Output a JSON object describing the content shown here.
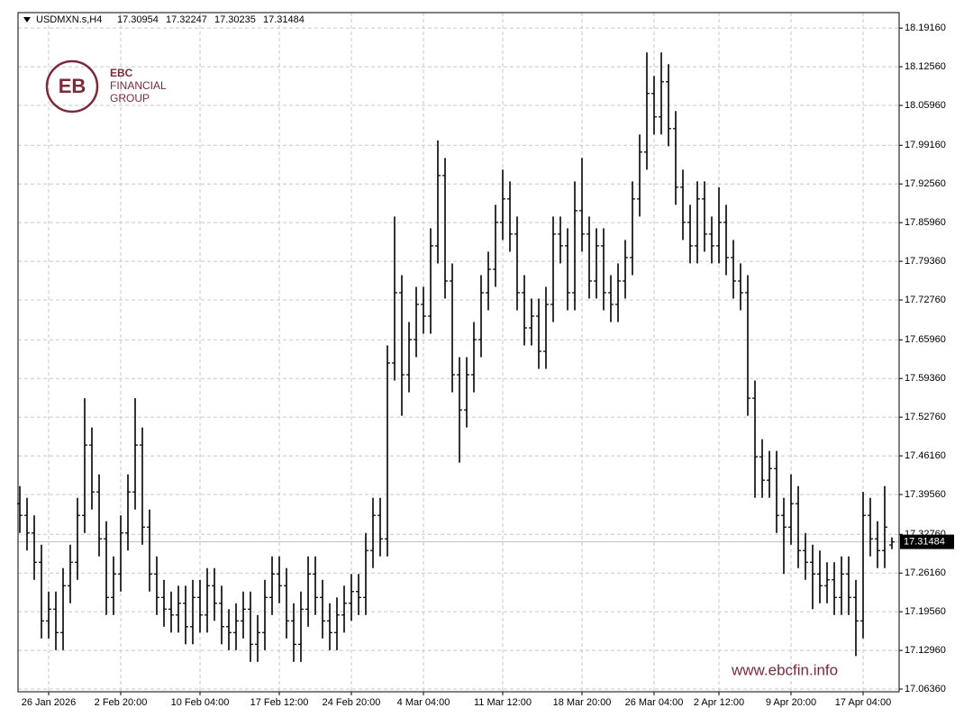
{
  "chart_data": {
    "type": "ohlc",
    "symbol": "USDMXN.s,H4",
    "color": "#000000",
    "grid": true,
    "logo": {
      "mark": "EBC",
      "line1": "FINANCIAL",
      "line2": "GROUP"
    },
    "watermark": "www.ebcfin.info",
    "ylim": [
      17.059,
      18.218
    ],
    "yticks": [
      {
        "value": 18.1916,
        "label": "18.19160"
      },
      {
        "value": 18.1256,
        "label": "18.12560"
      },
      {
        "value": 18.0596,
        "label": "18.05960"
      },
      {
        "value": 17.9916,
        "label": "17.99160"
      },
      {
        "value": 17.9256,
        "label": "17.92560"
      },
      {
        "value": 17.8596,
        "label": "17.85960"
      },
      {
        "value": 17.7936,
        "label": "17.79360"
      },
      {
        "value": 17.7276,
        "label": "17.72760"
      },
      {
        "value": 17.6596,
        "label": "17.65960"
      },
      {
        "value": 17.5936,
        "label": "17.59360"
      },
      {
        "value": 17.5276,
        "label": "17.52760"
      },
      {
        "value": 17.4616,
        "label": "17.46160"
      },
      {
        "value": 17.3956,
        "label": "17.39560"
      },
      {
        "value": 17.3276,
        "label": "17.32760"
      },
      {
        "value": 17.2616,
        "label": "17.26160"
      },
      {
        "value": 17.1956,
        "label": "17.19560"
      },
      {
        "value": 17.1296,
        "label": "17.12960"
      },
      {
        "value": 17.0636,
        "label": "17.06360"
      }
    ],
    "categories": [
      null,
      null,
      null,
      null,
      "26 Jan 2026",
      null,
      null,
      null,
      null,
      null,
      null,
      null,
      null,
      null,
      "2 Feb 20:00",
      null,
      null,
      null,
      null,
      null,
      null,
      null,
      null,
      null,
      null,
      "10 Feb 04:00",
      null,
      null,
      null,
      null,
      null,
      null,
      null,
      null,
      null,
      null,
      "17 Feb 12:00",
      null,
      null,
      null,
      null,
      null,
      null,
      null,
      null,
      null,
      "24 Feb 20:00",
      null,
      null,
      null,
      null,
      null,
      null,
      null,
      null,
      null,
      "4 Mar 04:00",
      null,
      null,
      null,
      null,
      null,
      null,
      null,
      null,
      null,
      null,
      "11 Mar 12:00",
      null,
      null,
      null,
      null,
      null,
      null,
      null,
      null,
      null,
      null,
      "18 Mar 20:00",
      null,
      null,
      null,
      null,
      null,
      null,
      null,
      null,
      null,
      "26 Mar 04:00",
      null,
      null,
      null,
      null,
      null,
      null,
      null,
      null,
      "2 Apr 12:00",
      null,
      null,
      null,
      null,
      null,
      null,
      null,
      null,
      null,
      "9 Apr 20:00",
      null,
      null,
      null,
      null,
      null,
      null,
      null,
      null,
      null,
      "17 Apr 04:00",
      null,
      null,
      null,
      null
    ],
    "open": [
      17.38,
      17.36,
      17.33,
      17.28,
      17.18,
      17.2,
      17.16,
      17.24,
      17.28,
      17.36,
      17.48,
      17.4,
      17.32,
      17.22,
      17.26,
      17.33,
      17.4,
      17.48,
      17.34,
      17.26,
      17.22,
      17.2,
      17.19,
      17.21,
      17.17,
      17.22,
      17.19,
      17.24,
      17.21,
      17.17,
      17.16,
      17.18,
      17.2,
      17.14,
      17.16,
      17.22,
      17.26,
      17.24,
      17.18,
      17.14,
      17.2,
      17.26,
      17.22,
      17.18,
      17.16,
      17.19,
      17.21,
      17.23,
      17.22,
      17.3,
      17.36,
      17.32,
      17.62,
      17.74,
      17.6,
      17.66,
      17.72,
      17.7,
      17.82,
      17.94,
      17.76,
      17.6,
      17.54,
      17.6,
      17.66,
      17.74,
      17.78,
      17.86,
      17.9,
      17.84,
      17.74,
      17.68,
      17.7,
      17.64,
      17.72,
      17.84,
      17.82,
      17.74,
      17.88,
      17.84,
      17.76,
      17.82,
      17.74,
      17.72,
      17.76,
      17.8,
      17.9,
      17.98,
      18.08,
      18.04,
      18.1,
      18.02,
      17.92,
      17.86,
      17.82,
      17.9,
      17.84,
      17.82,
      17.86,
      17.8,
      17.76,
      17.74,
      17.56,
      17.46,
      17.42,
      17.44,
      17.36,
      17.34,
      17.38,
      17.3,
      17.28,
      17.26,
      17.24,
      17.25,
      17.22,
      17.26,
      17.22,
      17.18,
      17.36,
      17.32,
      17.3,
      17.30954
    ],
    "high": [
      17.41,
      17.39,
      17.36,
      17.31,
      17.23,
      17.23,
      17.27,
      17.31,
      17.39,
      17.56,
      17.51,
      17.43,
      17.35,
      17.29,
      17.36,
      17.43,
      17.56,
      17.51,
      17.37,
      17.29,
      17.25,
      17.23,
      17.24,
      17.24,
      17.25,
      17.25,
      17.27,
      17.27,
      17.24,
      17.2,
      17.21,
      17.23,
      17.23,
      17.19,
      17.25,
      17.29,
      17.29,
      17.27,
      17.21,
      17.23,
      17.29,
      17.29,
      17.25,
      17.21,
      17.22,
      17.24,
      17.26,
      17.26,
      17.33,
      17.39,
      17.39,
      17.65,
      17.87,
      17.77,
      17.69,
      17.75,
      17.75,
      17.85,
      18.0,
      17.97,
      17.79,
      17.63,
      17.63,
      17.69,
      17.77,
      17.81,
      17.89,
      17.95,
      17.93,
      17.87,
      17.77,
      17.73,
      17.73,
      17.75,
      17.87,
      17.87,
      17.85,
      17.93,
      17.97,
      17.87,
      17.85,
      17.85,
      17.77,
      17.79,
      17.83,
      17.93,
      18.01,
      18.15,
      18.11,
      18.15,
      18.13,
      18.05,
      17.95,
      17.89,
      17.93,
      17.93,
      17.87,
      17.92,
      17.89,
      17.83,
      17.79,
      17.77,
      17.59,
      17.49,
      17.47,
      17.47,
      17.39,
      17.43,
      17.41,
      17.33,
      17.31,
      17.3,
      17.28,
      17.28,
      17.29,
      17.29,
      17.25,
      17.4,
      17.39,
      17.35,
      17.41,
      17.32247
    ],
    "low": [
      17.33,
      17.3,
      17.25,
      17.15,
      17.15,
      17.13,
      17.13,
      17.21,
      17.25,
      17.33,
      17.37,
      17.29,
      17.19,
      17.19,
      17.23,
      17.3,
      17.37,
      17.31,
      17.23,
      17.19,
      17.17,
      17.16,
      17.16,
      17.14,
      17.14,
      17.16,
      17.16,
      17.18,
      17.14,
      17.13,
      17.13,
      17.15,
      17.11,
      17.11,
      17.13,
      17.19,
      17.21,
      17.15,
      17.11,
      17.11,
      17.17,
      17.19,
      17.15,
      17.13,
      17.13,
      17.16,
      17.18,
      17.19,
      17.19,
      17.27,
      17.29,
      17.29,
      17.59,
      17.53,
      17.57,
      17.63,
      17.67,
      17.67,
      17.79,
      17.73,
      17.57,
      17.45,
      17.51,
      17.57,
      17.63,
      17.71,
      17.75,
      17.83,
      17.81,
      17.71,
      17.65,
      17.65,
      17.61,
      17.61,
      17.69,
      17.79,
      17.71,
      17.71,
      17.81,
      17.73,
      17.73,
      17.71,
      17.69,
      17.69,
      17.73,
      17.77,
      17.87,
      17.95,
      18.01,
      18.01,
      17.99,
      17.89,
      17.83,
      17.79,
      17.79,
      17.81,
      17.79,
      17.79,
      17.77,
      17.73,
      17.71,
      17.53,
      17.39,
      17.39,
      17.39,
      17.33,
      17.26,
      17.31,
      17.27,
      17.25,
      17.2,
      17.21,
      17.21,
      17.19,
      17.19,
      17.19,
      17.12,
      17.15,
      17.29,
      17.27,
      17.27,
      17.30235
    ],
    "close": [
      17.36,
      17.33,
      17.28,
      17.18,
      17.2,
      17.16,
      17.24,
      17.28,
      17.36,
      17.48,
      17.4,
      17.32,
      17.22,
      17.26,
      17.33,
      17.4,
      17.48,
      17.34,
      17.26,
      17.22,
      17.2,
      17.19,
      17.21,
      17.17,
      17.22,
      17.19,
      17.24,
      17.21,
      17.17,
      17.16,
      17.18,
      17.2,
      17.14,
      17.16,
      17.22,
      17.26,
      17.24,
      17.18,
      17.14,
      17.2,
      17.26,
      17.22,
      17.18,
      17.16,
      17.19,
      17.21,
      17.23,
      17.22,
      17.3,
      17.36,
      17.32,
      17.62,
      17.74,
      17.6,
      17.66,
      17.72,
      17.7,
      17.82,
      17.94,
      17.76,
      17.6,
      17.54,
      17.6,
      17.66,
      17.74,
      17.78,
      17.86,
      17.9,
      17.84,
      17.74,
      17.68,
      17.7,
      17.64,
      17.72,
      17.84,
      17.82,
      17.74,
      17.88,
      17.84,
      17.76,
      17.82,
      17.74,
      17.72,
      17.76,
      17.8,
      17.9,
      17.98,
      18.08,
      18.04,
      18.1,
      18.02,
      17.92,
      17.86,
      17.82,
      17.9,
      17.84,
      17.82,
      17.86,
      17.8,
      17.76,
      17.74,
      17.56,
      17.46,
      17.42,
      17.44,
      17.36,
      17.34,
      17.38,
      17.3,
      17.28,
      17.26,
      17.24,
      17.25,
      17.22,
      17.26,
      17.22,
      17.18,
      17.36,
      17.32,
      17.3,
      17.34,
      17.31484
    ]
  }
}
